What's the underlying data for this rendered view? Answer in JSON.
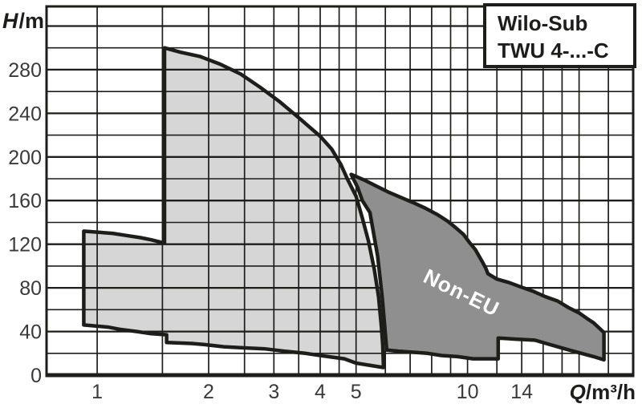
{
  "title_box": {
    "line1": "Wilo-Sub",
    "line2": "TWU 4-...-C"
  },
  "axes": {
    "y_var": "H",
    "y_unit": "/m",
    "x_var": "Q",
    "x_unit": "/m³/h"
  },
  "chart_data": {
    "type": "area",
    "title": "Wilo-Sub TWU 4-...-C",
    "x_scale": "log",
    "xlabel": "Q/m³/h",
    "ylabel": "H/m",
    "x_domain": [
      0.73,
      28
    ],
    "y_domain": [
      0,
      338
    ],
    "x_ticks": [
      1,
      2,
      3,
      4,
      5,
      10,
      14
    ],
    "y_ticks": [
      0,
      40,
      80,
      120,
      160,
      200,
      240,
      280
    ],
    "x_gridlines": [
      1,
      1.5,
      2,
      2.5,
      3,
      3.5,
      4,
      4.5,
      5,
      6,
      7,
      8,
      9,
      10,
      12,
      14,
      16,
      18,
      20,
      24
    ],
    "y_gridline_step": 20,
    "y_gridline_max": 320,
    "grid_on": true,
    "grid_color": "#1d1d1b",
    "frame_color": "#1d1d1b",
    "outline_color": "#1d1d1b",
    "tick_label_color": "#3a3a3a",
    "regions": [
      {
        "name": "unlabeled-envelope",
        "label": "",
        "fill": "#d6d6d6",
        "points": [
          [
            1.52,
            300
          ],
          [
            1.68,
            296
          ],
          [
            1.9,
            292
          ],
          [
            2.15,
            285
          ],
          [
            2.44,
            276
          ],
          [
            2.75,
            264
          ],
          [
            3.1,
            251
          ],
          [
            3.5,
            236
          ],
          [
            4.0,
            219
          ],
          [
            4.3,
            207
          ],
          [
            4.55,
            193
          ],
          [
            4.75,
            179
          ],
          [
            5.0,
            164
          ],
          [
            5.2,
            144
          ],
          [
            5.4,
            123
          ],
          [
            5.6,
            97
          ],
          [
            5.75,
            72
          ],
          [
            5.85,
            45
          ],
          [
            5.9,
            28
          ],
          [
            5.93,
            7
          ],
          [
            5.0,
            11
          ],
          [
            4.65,
            15
          ],
          [
            4.0,
            18
          ],
          [
            3.65,
            20
          ],
          [
            3.2,
            22
          ],
          [
            2.85,
            24
          ],
          [
            2.5,
            25
          ],
          [
            2.2,
            26
          ],
          [
            1.95,
            28
          ],
          [
            1.8,
            29
          ],
          [
            1.54,
            30
          ],
          [
            1.54,
            37
          ],
          [
            1.4,
            38
          ],
          [
            1.28,
            40
          ],
          [
            1.15,
            42
          ],
          [
            1.07,
            44
          ],
          [
            0.92,
            46
          ],
          [
            0.92,
            132
          ],
          [
            1.1,
            130
          ],
          [
            1.2,
            128
          ],
          [
            1.31,
            126
          ],
          [
            1.4,
            124
          ],
          [
            1.52,
            121
          ]
        ]
      },
      {
        "name": "non-eu",
        "label": "Non-EU",
        "fill": "#8f8f8f",
        "label_color": "#ffffff",
        "points": [
          [
            4.85,
            184
          ],
          [
            5.25,
            179
          ],
          [
            5.7,
            173
          ],
          [
            6.1,
            168
          ],
          [
            6.6,
            163
          ],
          [
            7.15,
            158
          ],
          [
            7.7,
            153
          ],
          [
            8.3,
            147
          ],
          [
            8.85,
            141
          ],
          [
            9.3,
            135
          ],
          [
            9.75,
            129
          ],
          [
            10.1,
            122
          ],
          [
            10.5,
            115
          ],
          [
            10.75,
            109
          ],
          [
            11.0,
            103
          ],
          [
            11.2,
            98
          ],
          [
            11.35,
            93
          ],
          [
            12.0,
            88
          ],
          [
            12.9,
            85
          ],
          [
            13.9,
            81
          ],
          [
            15.0,
            77
          ],
          [
            16.2,
            72
          ],
          [
            17.5,
            68
          ],
          [
            18.7,
            62
          ],
          [
            20.0,
            57
          ],
          [
            21.0,
            52
          ],
          [
            21.9,
            48
          ],
          [
            22.7,
            43
          ],
          [
            23.35,
            39
          ],
          [
            23.35,
            14
          ],
          [
            21.9,
            17
          ],
          [
            20.3,
            20
          ],
          [
            18.8,
            23
          ],
          [
            17.5,
            26
          ],
          [
            16.3,
            29
          ],
          [
            15.2,
            32
          ],
          [
            13.5,
            33
          ],
          [
            12.1,
            34
          ],
          [
            12.1,
            15
          ],
          [
            11.3,
            15
          ],
          [
            10.35,
            15
          ],
          [
            9.4,
            17
          ],
          [
            8.5,
            18
          ],
          [
            7.8,
            20
          ],
          [
            7.1,
            21
          ],
          [
            6.5,
            22
          ],
          [
            6.05,
            23
          ],
          [
            5.98,
            43
          ],
          [
            5.88,
            72
          ],
          [
            5.72,
            109
          ],
          [
            5.45,
            149
          ],
          [
            5.2,
            160
          ],
          [
            5.05,
            172
          ]
        ]
      }
    ]
  }
}
